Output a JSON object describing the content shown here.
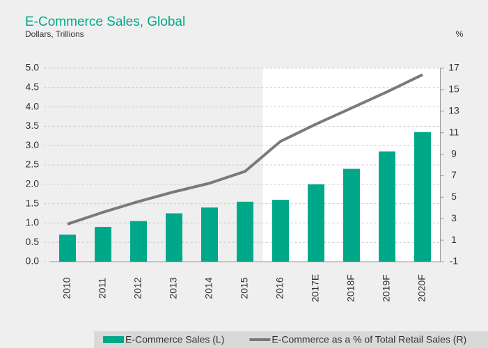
{
  "chart_data": {
    "type": "bar",
    "title": "E-Commerce Sales, Global",
    "subtitle": "Dollars, Trillions",
    "y2_label": "%",
    "categories": [
      "2010",
      "2011",
      "2012",
      "2013",
      "2014",
      "2015",
      "2016",
      "2017E",
      "2018F",
      "2019F",
      "2020F"
    ],
    "series": [
      {
        "name": "E-Commerce Sales (L)",
        "type": "bar",
        "color": "#00a88a",
        "values": [
          0.7,
          0.9,
          1.05,
          1.25,
          1.4,
          1.55,
          1.6,
          2.0,
          2.4,
          2.85,
          3.35
        ]
      },
      {
        "name": "E-Commerce as a % of Total Retail Sales (R)",
        "type": "line",
        "axis": "y2",
        "color": "#7a7a7a",
        "values": [
          2.5,
          3.6,
          4.6,
          5.5,
          6.3,
          7.4,
          10.2,
          11.8,
          13.3,
          14.8,
          16.4
        ]
      }
    ],
    "ylim": [
      0,
      5
    ],
    "yticks": [
      {
        "value": 0,
        "label": "0.0"
      },
      0.5,
      {
        "value": 1,
        "label": "1.0"
      },
      1.5,
      {
        "value": 2,
        "label": "2.0"
      },
      2.5,
      {
        "value": 3,
        "label": "3.0"
      },
      3.5,
      {
        "value": 4,
        "label": "4.0"
      },
      4.5,
      {
        "value": 5,
        "label": "5.0"
      }
    ],
    "y2lim": [
      -1,
      17
    ],
    "y2ticks": [
      -1,
      1,
      3,
      5,
      7,
      9,
      11,
      13,
      15,
      17
    ],
    "grid": true,
    "legend": "bottom"
  }
}
